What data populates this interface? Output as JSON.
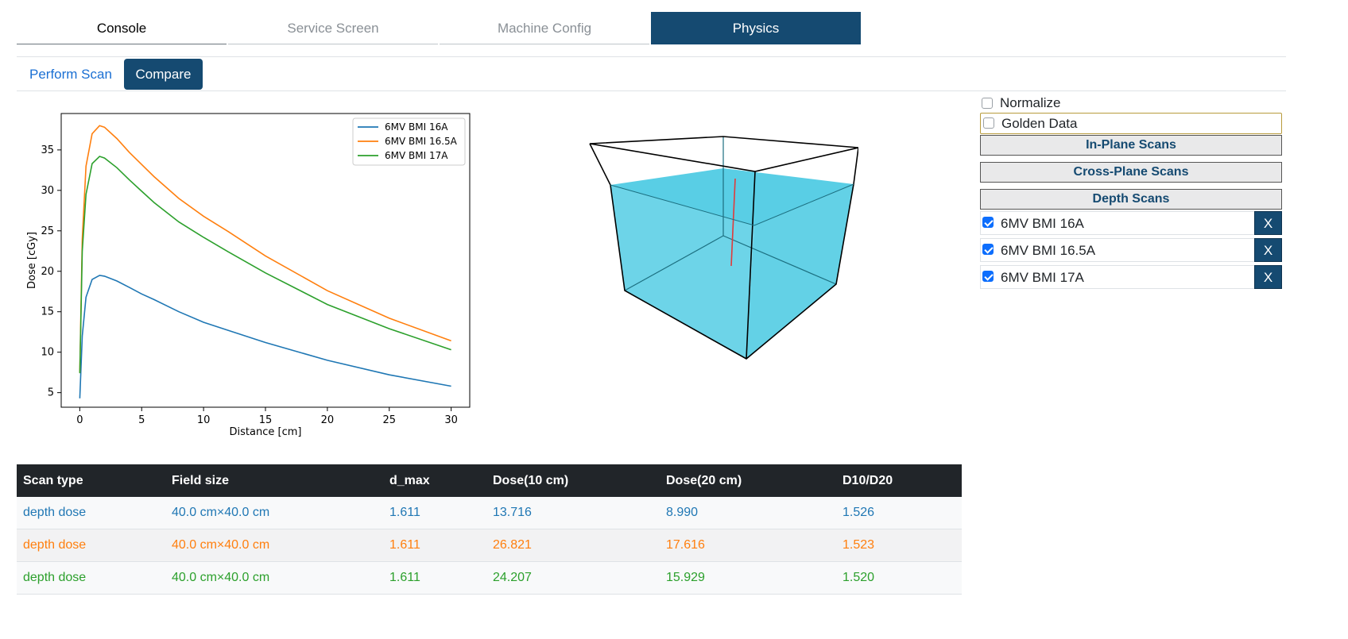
{
  "top_tabs": [
    {
      "label": "Console",
      "state": "first"
    },
    {
      "label": "Service Screen",
      "state": "inactive"
    },
    {
      "label": "Machine Config",
      "state": "inactive"
    },
    {
      "label": "Physics",
      "state": "active"
    }
  ],
  "sub_tabs": {
    "perform_scan": "Perform Scan",
    "compare": "Compare"
  },
  "right_panel": {
    "normalize": {
      "label": "Normalize",
      "checked": false
    },
    "golden_data": {
      "label": "Golden Data",
      "checked": false
    },
    "in_plane": "In-Plane Scans",
    "cross_plane": "Cross-Plane Scans",
    "depth_scans": "Depth Scans",
    "items": [
      {
        "label": "6MV BMI 16A",
        "checked": true,
        "remove": "X"
      },
      {
        "label": "6MV BMI 16.5A",
        "checked": true,
        "remove": "X"
      },
      {
        "label": "6MV BMI 17A",
        "checked": true,
        "remove": "X"
      }
    ]
  },
  "chart_data": {
    "type": "line",
    "xlabel": "Distance [cm]",
    "ylabel": "Dose [cGy]",
    "xlim": [
      -1.5,
      31.5
    ],
    "ylim": [
      3.2,
      39.5
    ],
    "xticks": [
      0,
      5,
      10,
      15,
      20,
      25,
      30
    ],
    "yticks": [
      5,
      10,
      15,
      20,
      25,
      30,
      35
    ],
    "legend": "top-right",
    "grid": false,
    "series": [
      {
        "name": "6MV BMI 16A",
        "color": "#1f77b4",
        "x": [
          0,
          0.2,
          0.5,
          1.0,
          1.6,
          2.0,
          3,
          4,
          5,
          6,
          8,
          10,
          12,
          15,
          20,
          25,
          30
        ],
        "y": [
          4.3,
          12.0,
          16.8,
          19.0,
          19.5,
          19.4,
          18.8,
          18.0,
          17.2,
          16.5,
          15.0,
          13.7,
          12.7,
          11.2,
          9.0,
          7.2,
          5.8
        ]
      },
      {
        "name": "6MV BMI 16.5A",
        "color": "#ff7f0e",
        "x": [
          0,
          0.2,
          0.5,
          1.0,
          1.6,
          2.0,
          3,
          4,
          5,
          6,
          8,
          10,
          12,
          15,
          20,
          25,
          30
        ],
        "y": [
          7.5,
          24.0,
          33.0,
          37.0,
          38.0,
          37.8,
          36.4,
          34.7,
          33.2,
          31.7,
          29.0,
          26.8,
          24.9,
          21.9,
          17.6,
          14.2,
          11.4
        ]
      },
      {
        "name": "6MV BMI 17A",
        "color": "#2ca02c",
        "x": [
          0,
          0.2,
          0.5,
          1.0,
          1.6,
          2.0,
          3,
          4,
          5,
          6,
          8,
          10,
          12,
          15,
          20,
          25,
          30
        ],
        "y": [
          7.4,
          22.5,
          29.5,
          33.3,
          34.2,
          34.0,
          32.8,
          31.3,
          29.9,
          28.5,
          26.1,
          24.2,
          22.4,
          19.8,
          15.9,
          12.9,
          10.3
        ]
      }
    ]
  },
  "table": {
    "headers": [
      "Scan type",
      "Field size",
      "d_max",
      "Dose(10 cm)",
      "Dose(20 cm)",
      "D10/D20"
    ],
    "rows": [
      {
        "color": "#1f77b4",
        "cells": [
          "depth dose",
          "40.0 cm×40.0 cm",
          "1.611",
          "13.716",
          "8.990",
          "1.526"
        ]
      },
      {
        "color": "#ff7f0e",
        "cells": [
          "depth dose",
          "40.0 cm×40.0 cm",
          "1.611",
          "26.821",
          "17.616",
          "1.523"
        ]
      },
      {
        "color": "#2ca02c",
        "cells": [
          "depth dose",
          "40.0 cm×40.0 cm",
          "1.611",
          "24.207",
          "15.929",
          "1.520"
        ]
      }
    ]
  },
  "colors": {
    "accent": "#154a71",
    "water": "#3cc6e0",
    "beam": "#e03b3b"
  }
}
